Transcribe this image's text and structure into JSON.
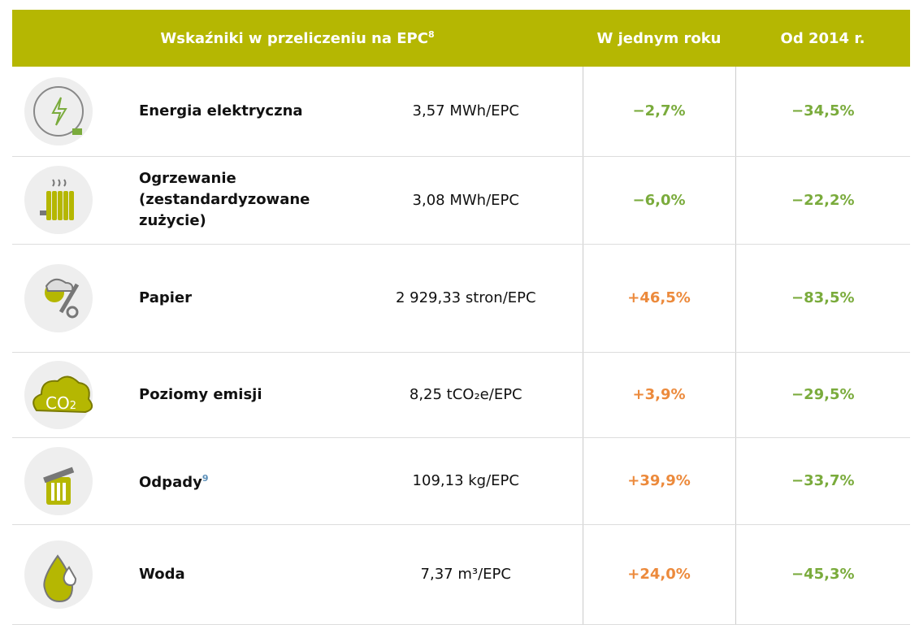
{
  "header": {
    "title": "Wskaźniki w przeliczeniu na EPC",
    "title_note": "8",
    "col_year": "W jednym roku",
    "col_since": "Od 2014 r."
  },
  "colors": {
    "header": "#b5b702",
    "decrease": "#7aab3c",
    "increase": "#ec8a3c",
    "note": "#5b8fb9"
  },
  "rows": [
    {
      "label": "Energia elektryczna",
      "value": "3,57 MWh/EPC",
      "year": "−2,7%",
      "since": "−34,5%"
    },
    {
      "label": "Ogrzewanie (zestandardyzowane zużycie)",
      "value": "3,08 MWh/EPC",
      "year": "−6,0%",
      "since": "−22,2%"
    },
    {
      "label": "Papier",
      "value": "2 929,33 stron/EPC",
      "year": "+46,5%",
      "since": "−83,5%"
    },
    {
      "label": "Poziomy emisji",
      "value": "8,25 tCO₂e/EPC",
      "year": "+3,9%",
      "since": "−29,5%"
    },
    {
      "label": "Odpady",
      "note": "9",
      "value": "109,13 kg/EPC",
      "year": "+39,9%",
      "since": "−33,7%"
    },
    {
      "label": "Woda",
      "value": "7,37 m³/EPC",
      "year": "+24,0%",
      "since": "−45,3%"
    }
  ]
}
